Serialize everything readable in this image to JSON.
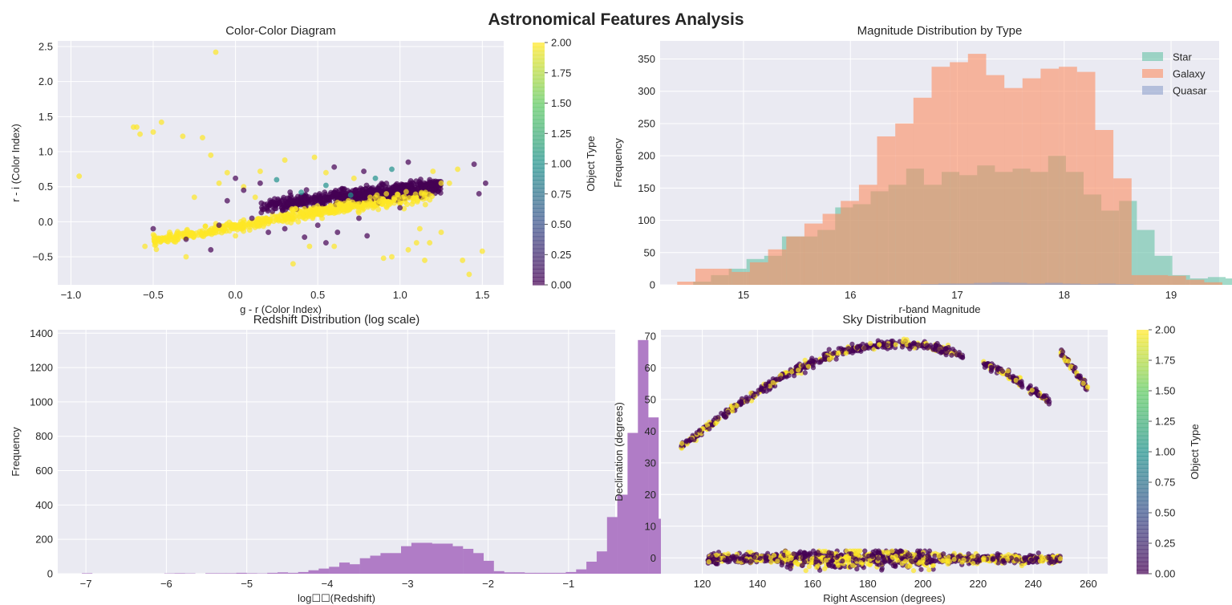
{
  "figure": {
    "title": "Astronomical Features Analysis",
    "background": "#ffffff",
    "axes_facecolor": "#eaeaf2",
    "grid_color": "#ffffff"
  },
  "chart_data": [
    {
      "id": "color-color",
      "type": "scatter",
      "title": "Color-Color Diagram",
      "xlabel": "g - r (Color Index)",
      "ylabel": "r - i (Color Index)",
      "xlim": [
        -1.08,
        1.63
      ],
      "ylim": [
        -0.9,
        2.58
      ],
      "xticks": [
        -1.0,
        -0.5,
        0.0,
        0.5,
        1.0,
        1.5
      ],
      "xtick_labels": [
        "−1.0",
        "−0.5",
        "0.0",
        "0.5",
        "1.0",
        "1.5"
      ],
      "yticks": [
        -0.5,
        0.0,
        0.5,
        1.0,
        1.5,
        2.0,
        2.5
      ],
      "ytick_labels": [
        "−0.5",
        "0.0",
        "0.5",
        "1.0",
        "1.5",
        "2.0",
        "2.5"
      ],
      "grid": true,
      "colormap": "viridis",
      "colorbar": {
        "label": "Object Type",
        "range": [
          0,
          2
        ],
        "ticks": [
          "0.00",
          "0.25",
          "0.50",
          "0.75",
          "1.00",
          "1.25",
          "1.50",
          "1.75",
          "2.00"
        ]
      },
      "points": [
        [
          -0.95,
          0.65,
          2
        ],
        [
          -0.62,
          1.35,
          2
        ],
        [
          -0.6,
          1.35,
          2
        ],
        [
          -0.58,
          1.25,
          2
        ],
        [
          -0.55,
          -0.35,
          2
        ],
        [
          -0.5,
          1.28,
          2
        ],
        [
          -0.45,
          1.42,
          2
        ],
        [
          -0.32,
          1.22,
          2
        ],
        [
          -0.2,
          1.2,
          2
        ],
        [
          -0.15,
          0.95,
          2
        ],
        [
          -0.12,
          2.42,
          2
        ],
        [
          -0.4,
          -0.15,
          2
        ],
        [
          -0.3,
          -0.5,
          2
        ],
        [
          -0.25,
          0.35,
          2
        ],
        [
          -0.1,
          0.55,
          2
        ],
        [
          -0.05,
          0.7,
          2
        ],
        [
          0.0,
          -0.2,
          2
        ],
        [
          0.05,
          0.5,
          2
        ],
        [
          0.12,
          0.35,
          2
        ],
        [
          0.3,
          0.88,
          2
        ],
        [
          0.35,
          -0.6,
          2
        ],
        [
          0.45,
          -0.35,
          2
        ],
        [
          0.48,
          0.92,
          2
        ],
        [
          0.55,
          0.7,
          2
        ],
        [
          0.6,
          -0.35,
          2
        ],
        [
          0.72,
          0.62,
          2
        ],
        [
          0.85,
          0.35,
          2
        ],
        [
          0.9,
          -0.52,
          2
        ],
        [
          0.95,
          -0.5,
          2
        ],
        [
          1.05,
          -0.4,
          2
        ],
        [
          1.1,
          -0.3,
          2
        ],
        [
          1.12,
          -0.1,
          2
        ],
        [
          1.15,
          -0.55,
          2
        ],
        [
          1.18,
          -0.3,
          2
        ],
        [
          1.2,
          0.72,
          2
        ],
        [
          1.25,
          0.55,
          2
        ],
        [
          1.3,
          0.55,
          2
        ],
        [
          1.35,
          0.75,
          2
        ],
        [
          1.38,
          -0.55,
          2
        ],
        [
          1.42,
          -0.75,
          2
        ],
        [
          1.5,
          -0.42,
          2
        ],
        [
          1.25,
          -0.15,
          2
        ],
        [
          0.15,
          0.72,
          2
        ],
        [
          0.35,
          0.15,
          2
        ],
        [
          -0.5,
          -0.1,
          0
        ],
        [
          -0.3,
          -0.25,
          0
        ],
        [
          -0.15,
          -0.4,
          0
        ],
        [
          -0.1,
          -0.05,
          0
        ],
        [
          0.0,
          0.62,
          0
        ],
        [
          0.1,
          0.05,
          0
        ],
        [
          0.2,
          -0.15,
          0
        ],
        [
          0.25,
          0.25,
          0
        ],
        [
          0.3,
          -0.1,
          0
        ],
        [
          0.5,
          -0.05,
          0
        ],
        [
          0.55,
          -0.3,
          0
        ],
        [
          0.6,
          0.78,
          0
        ],
        [
          0.75,
          0.05,
          0
        ],
        [
          0.78,
          0.72,
          0
        ],
        [
          0.8,
          -0.2,
          0
        ],
        [
          1.0,
          0.2,
          0
        ],
        [
          1.05,
          0.85,
          0
        ],
        [
          1.18,
          0.6,
          0
        ],
        [
          1.45,
          0.82,
          0
        ],
        [
          1.48,
          0.4,
          0
        ],
        [
          1.52,
          0.55,
          0
        ],
        [
          0.42,
          -0.22,
          0
        ],
        [
          0.15,
          0.55,
          0
        ],
        [
          0.05,
          0.45,
          0
        ],
        [
          -0.05,
          0.3,
          0
        ],
        [
          0.62,
          -0.15,
          0
        ],
        [
          0.25,
          0.6,
          1
        ],
        [
          0.55,
          0.52,
          1
        ],
        [
          0.7,
          0.38,
          1
        ],
        [
          0.95,
          0.75,
          1
        ],
        [
          0.4,
          0.42,
          1
        ],
        [
          0.85,
          0.62,
          1
        ]
      ],
      "star_band": {
        "g_r": [
          0.15,
          1.25
        ],
        "r_i": [
          0.18,
          0.55
        ]
      },
      "galaxy_band": {
        "g_r": [
          -0.5,
          1.2
        ],
        "r_i": [
          -0.35,
          0.38
        ]
      }
    },
    {
      "id": "magnitude",
      "type": "bar",
      "title": "Magnitude Distribution by Type",
      "xlabel": "r-band Magnitude",
      "ylabel": "Frequency",
      "xlim": [
        14.22,
        19.45
      ],
      "ylim": [
        0,
        378
      ],
      "xticks": [
        15,
        16,
        17,
        18,
        19
      ],
      "xtick_labels": [
        "15",
        "16",
        "17",
        "18",
        "19"
      ],
      "yticks": [
        0,
        50,
        100,
        150,
        200,
        250,
        300,
        350
      ],
      "ytick_labels": [
        "0",
        "50",
        "100",
        "150",
        "200",
        "250",
        "300",
        "350"
      ],
      "grid": true,
      "legend": "top-right",
      "series": [
        {
          "name": "Star",
          "color": "#66c2a5",
          "bin_start": 14.53,
          "bin_width": 0.166,
          "values": [
            5,
            15,
            25,
            40,
            45,
            75,
            75,
            85,
            120,
            125,
            145,
            155,
            180,
            155,
            175,
            170,
            185,
            175,
            180,
            175,
            200,
            175,
            140,
            115,
            130,
            85,
            45,
            15,
            10,
            12,
            10,
            3
          ]
        },
        {
          "name": "Galaxy",
          "color": "#fc8d62",
          "bin_start": 14.38,
          "bin_width": 0.17,
          "values": [
            5,
            25,
            25,
            20,
            35,
            55,
            75,
            95,
            110,
            130,
            155,
            230,
            250,
            290,
            338,
            345,
            358,
            325,
            305,
            320,
            335,
            338,
            330,
            240,
            165,
            15,
            15,
            14,
            8,
            4
          ]
        },
        {
          "name": "Quasar",
          "color": "#8da0cb",
          "bin_start": 14.5,
          "bin_width": 0.166,
          "values": [
            0,
            0,
            0,
            0,
            0,
            0,
            0,
            0,
            0,
            0,
            0,
            0,
            0,
            1,
            2,
            2,
            3,
            4,
            3,
            2,
            3,
            2,
            1,
            2,
            1,
            0,
            0,
            0,
            0,
            0,
            0,
            0
          ]
        }
      ]
    },
    {
      "id": "redshift",
      "type": "bar",
      "title": "Redshift Distribution (log scale)",
      "xlabel": "log☐☐(Redshift)",
      "ylabel": "Frequency",
      "xlim": [
        -7.35,
        -0.42
      ],
      "ylim": [
        0,
        1420
      ],
      "xticks": [
        -7,
        -6,
        -5,
        -4,
        -3,
        -2,
        -1
      ],
      "xtick_labels": [
        "−7",
        "−6",
        "−5",
        "−4",
        "−3",
        "−2",
        "−1"
      ],
      "yticks": [
        0,
        200,
        400,
        600,
        800,
        1000,
        1200,
        1400
      ],
      "ytick_labels": [
        "0",
        "200",
        "400",
        "600",
        "800",
        "1000",
        "1200",
        "1400"
      ],
      "grid": true,
      "color": "#b07cc6",
      "bin_start": -7.05,
      "bin_width": 0.128,
      "values": [
        3,
        0,
        0,
        0,
        0,
        0,
        0,
        0,
        2,
        3,
        2,
        0,
        3,
        3,
        3,
        5,
        3,
        2,
        5,
        8,
        5,
        10,
        20,
        30,
        40,
        65,
        55,
        90,
        105,
        120,
        120,
        160,
        180,
        180,
        175,
        175,
        160,
        145,
        120,
        75,
        15,
        8,
        8,
        5,
        5,
        5,
        5,
        10,
        25,
        70,
        130,
        330,
        460,
        820,
        1360,
        910,
        320,
        180,
        60
      ]
    },
    {
      "id": "sky",
      "type": "scatter",
      "title": "Sky Distribution",
      "xlabel": "Right Ascension (degrees)",
      "ylabel": "Declination (degrees)",
      "xlim": [
        105,
        267
      ],
      "ylim": [
        -5,
        72
      ],
      "xticks": [
        120,
        140,
        160,
        180,
        200,
        220,
        240,
        260
      ],
      "xtick_labels": [
        "120",
        "140",
        "160",
        "180",
        "200",
        "220",
        "240",
        "260"
      ],
      "yticks": [
        0,
        10,
        20,
        30,
        40,
        50,
        60,
        70
      ],
      "ytick_labels": [
        "0",
        "10",
        "20",
        "30",
        "40",
        "50",
        "60",
        "70"
      ],
      "grid": true,
      "colormap": "viridis",
      "colorbar": {
        "label": "Object Type",
        "range": [
          0,
          2
        ],
        "ticks": [
          "0.00",
          "0.25",
          "0.50",
          "0.75",
          "1.00",
          "1.25",
          "1.50",
          "1.75",
          "2.00"
        ]
      },
      "arc": {
        "ra_range": [
          112,
          246
        ],
        "dec_peak": 67.5,
        "ra_peak": 190
      },
      "arc2": {
        "ra_range": [
          250,
          260
        ],
        "dec_range": [
          65,
          53
        ]
      },
      "stripe": {
        "ra_range": [
          122,
          250
        ],
        "dec_center": -0.3,
        "dec_spread": 1.6
      }
    }
  ],
  "colors": {
    "viridis": [
      "#440154",
      "#3b528b",
      "#21918c",
      "#5ec962",
      "#fde725"
    ],
    "purple": "#440154",
    "teal": "#21918c",
    "yellow": "#fde725"
  }
}
